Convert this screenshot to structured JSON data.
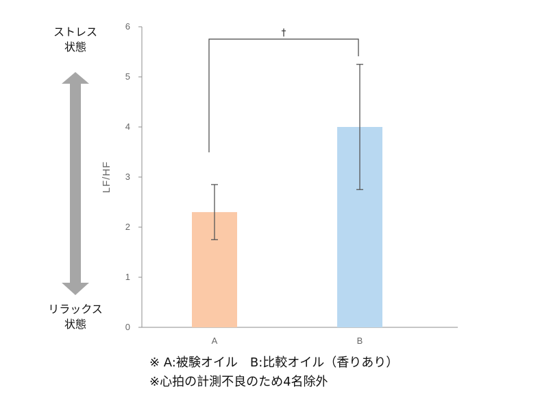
{
  "chart_data": {
    "type": "bar",
    "categories": [
      "A",
      "B"
    ],
    "values": [
      2.3,
      4.0
    ],
    "error": [
      0.55,
      1.25
    ],
    "bar_colors": [
      "#FBC9A7",
      "#B8D8F1"
    ],
    "ylabel": "LF/HF",
    "xlabel": "",
    "ylim": [
      0,
      6
    ],
    "yticks": [
      "0",
      "1",
      "2",
      "3",
      "4",
      "5",
      "6"
    ],
    "grid": false,
    "significance": {
      "between": [
        "A",
        "B"
      ],
      "marker": "†"
    }
  },
  "axis_side": {
    "top_label": [
      "ストレス",
      "状態"
    ],
    "bottom_label": [
      "リラックス",
      "状態"
    ],
    "arrow_color": "#A6A6A6"
  },
  "notes": {
    "line1": "※ A:被験オイル　B:比較オイル（香りあり）",
    "line2": "※心拍の計測不良のため4名除外"
  }
}
